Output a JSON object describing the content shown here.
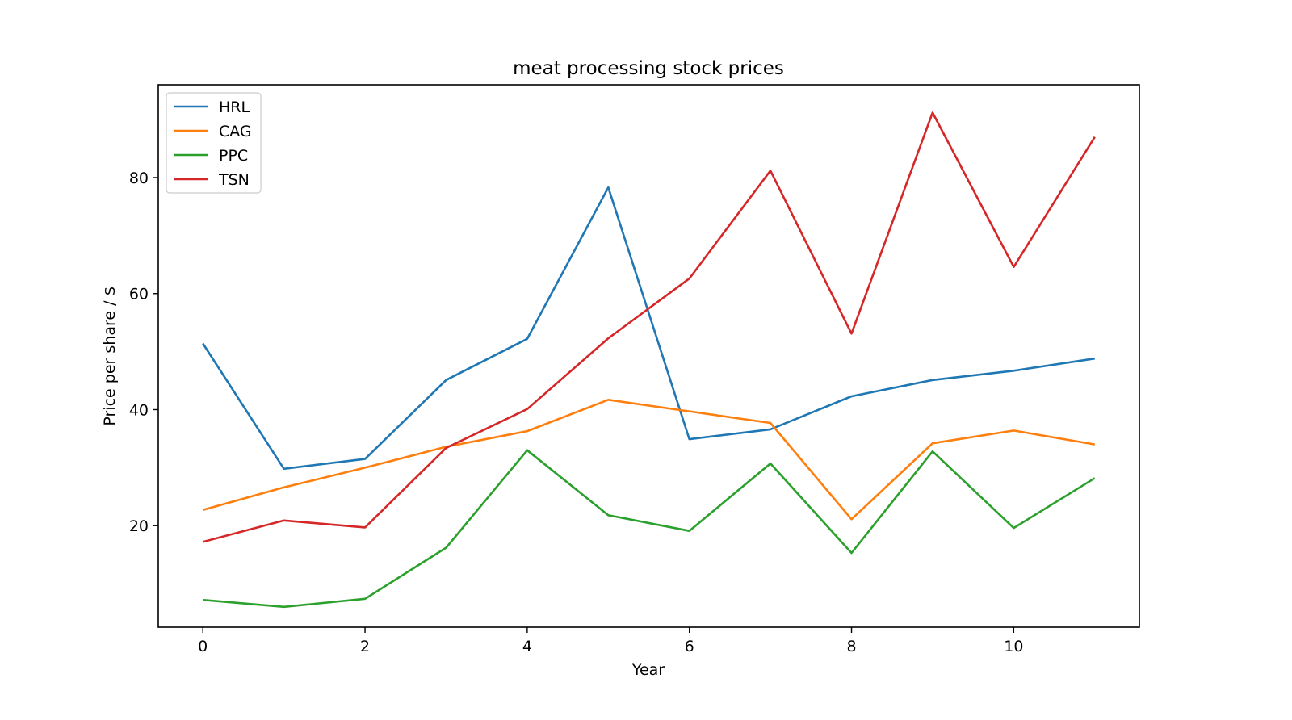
{
  "chart_data": {
    "type": "line",
    "title": "meat processing stock prices",
    "xlabel": "Year",
    "ylabel": "Price per share / $",
    "x": [
      0,
      1,
      2,
      3,
      4,
      5,
      6,
      7,
      8,
      9,
      10,
      11
    ],
    "xlim": [
      -0.55,
      11.55
    ],
    "ylim": [
      2.5,
      96
    ],
    "xticks": [
      0,
      2,
      4,
      6,
      8,
      10
    ],
    "yticks": [
      20,
      40,
      60,
      80
    ],
    "grid": false,
    "legend_position": "top-left",
    "series": [
      {
        "name": "HRL",
        "color": "#1f77b4",
        "values": [
          51.4,
          29.8,
          31.5,
          45.1,
          52.2,
          78.3,
          34.9,
          36.6,
          42.3,
          45.1,
          46.7,
          48.8
        ]
      },
      {
        "name": "CAG",
        "color": "#ff7f0e",
        "values": [
          22.7,
          26.6,
          30.0,
          33.6,
          36.3,
          41.7,
          39.7,
          37.7,
          21.1,
          34.2,
          36.4,
          34.0
        ]
      },
      {
        "name": "PPC",
        "color": "#2ca02c",
        "values": [
          7.2,
          6.0,
          7.4,
          16.2,
          33.0,
          21.8,
          19.1,
          30.7,
          15.3,
          32.8,
          19.6,
          28.2
        ]
      },
      {
        "name": "TSN",
        "color": "#d62728",
        "values": [
          17.2,
          20.9,
          19.7,
          33.4,
          40.1,
          52.3,
          62.6,
          81.2,
          53.1,
          91.2,
          64.6,
          87.0
        ]
      }
    ]
  }
}
